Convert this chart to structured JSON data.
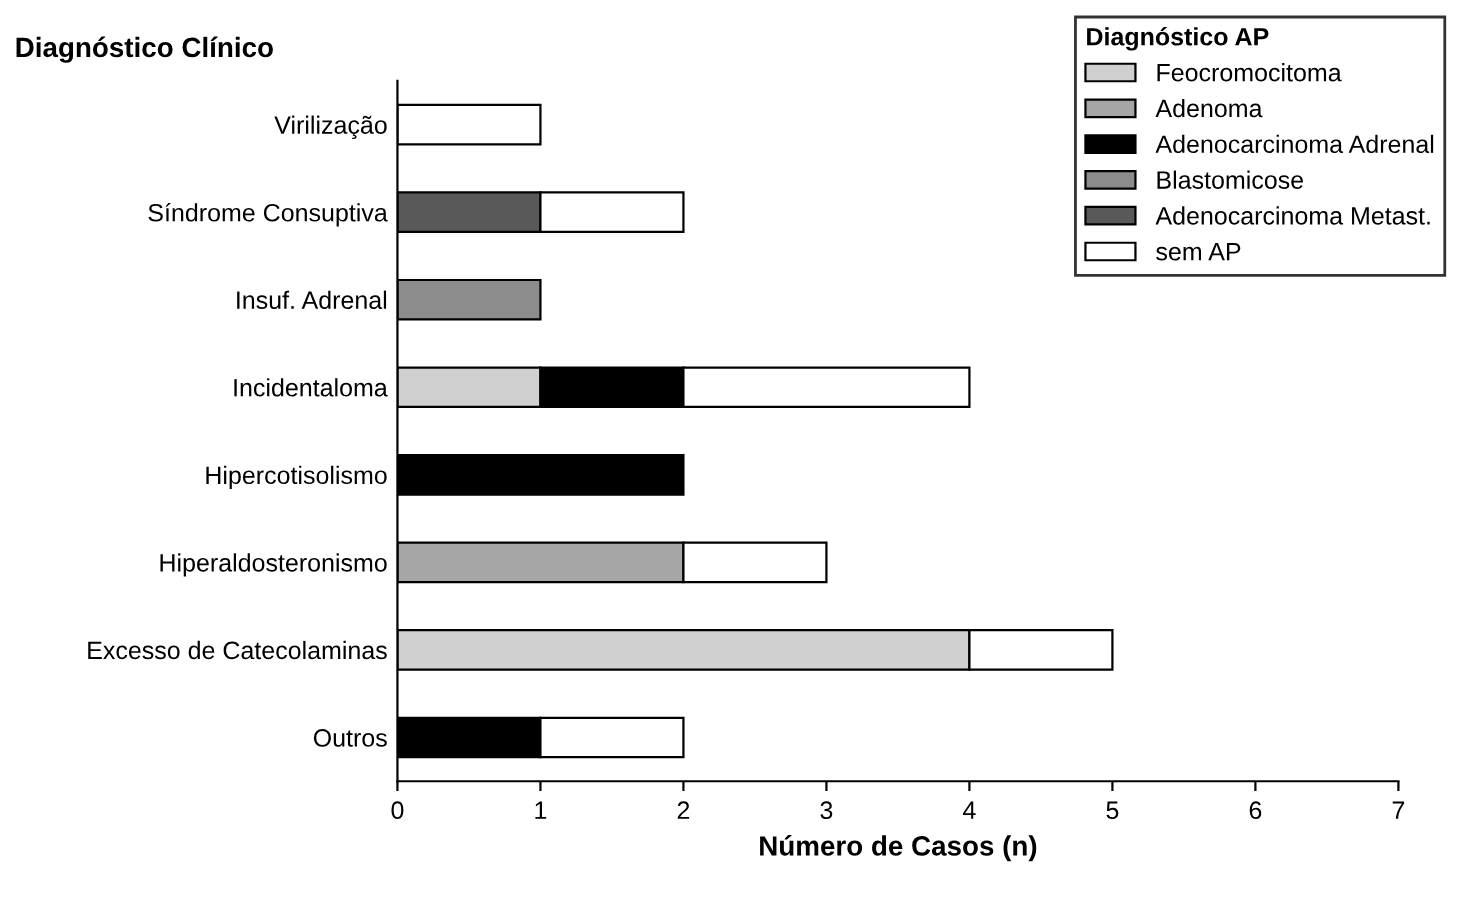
{
  "chart_data": {
    "type": "bar",
    "orientation": "horizontal",
    "stacked": true,
    "ylabel": "Diagnóstico Clínico",
    "xlabel": "Número de Casos (n)",
    "legend_title": "Diagnóstico AP",
    "categories": [
      "Virilização",
      "Síndrome Consuptiva",
      "Insuf. Adrenal",
      "Incidentaloma",
      "Hipercotisolismo",
      "Hiperaldosteronismo",
      "Excesso de Catecolaminas",
      "Outros"
    ],
    "series": [
      {
        "name": "Feocromocitoma",
        "color": "#d0d0d0",
        "values": [
          null,
          null,
          null,
          1,
          null,
          null,
          4,
          null
        ]
      },
      {
        "name": "Adenoma",
        "color": "#a6a6a6",
        "values": [
          null,
          null,
          null,
          null,
          null,
          2,
          null,
          null
        ]
      },
      {
        "name": "Adenocarcinoma Adrenal",
        "color": "#000000",
        "values": [
          null,
          null,
          null,
          1,
          2,
          null,
          null,
          1
        ]
      },
      {
        "name": "Blastomicose",
        "color": "#8c8c8c",
        "values": [
          null,
          null,
          1,
          null,
          null,
          null,
          null,
          null
        ]
      },
      {
        "name": "Adenocarcinoma Metast.",
        "color": "#595959",
        "values": [
          null,
          1,
          null,
          null,
          null,
          null,
          null,
          null
        ]
      },
      {
        "name": "sem AP",
        "color": "#ffffff",
        "values": [
          1,
          1,
          null,
          2,
          null,
          1,
          1,
          1
        ]
      }
    ],
    "xlim": [
      0,
      7
    ],
    "xticks": [
      0,
      1,
      2,
      3,
      4,
      5,
      6,
      7
    ],
    "grid": false,
    "legend": "top right"
  }
}
